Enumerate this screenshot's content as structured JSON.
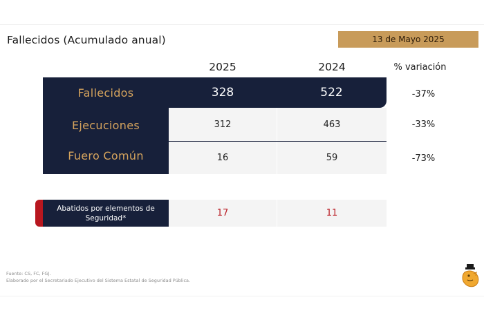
{
  "header": {
    "title": "Fallecidos (Acumulado anual)",
    "date": "13 de Mayo 2025"
  },
  "columns": {
    "year_2025": "2025",
    "year_2024": "2024",
    "variation": "% variación"
  },
  "table": {
    "rows": [
      {
        "label": "Fallecidos",
        "v2025": "328",
        "v2024": "522",
        "variation": "-37%"
      },
      {
        "label": "Ejecuciones",
        "v2025": "312",
        "v2024": "463",
        "variation": "-33%"
      },
      {
        "label": "Fuero Común",
        "v2025": "16",
        "v2024": "59",
        "variation": "-73%"
      }
    ]
  },
  "abatidos": {
    "label": "Abatidos por elementos de Seguridad*",
    "v2025": "17",
    "v2024": "11"
  },
  "footer": {
    "source": "Fuente: CS, FC, FGJ.",
    "credit": "Elaborado por el Secretariado Ejecutivo del Sistema Estatal de Seguridad Pública."
  },
  "colors": {
    "navy": "#17203a",
    "gold": "#d6a45d",
    "badge": "#c89b5a",
    "red": "#b8171f"
  },
  "icons": {
    "logo": "lion-crest-icon"
  }
}
